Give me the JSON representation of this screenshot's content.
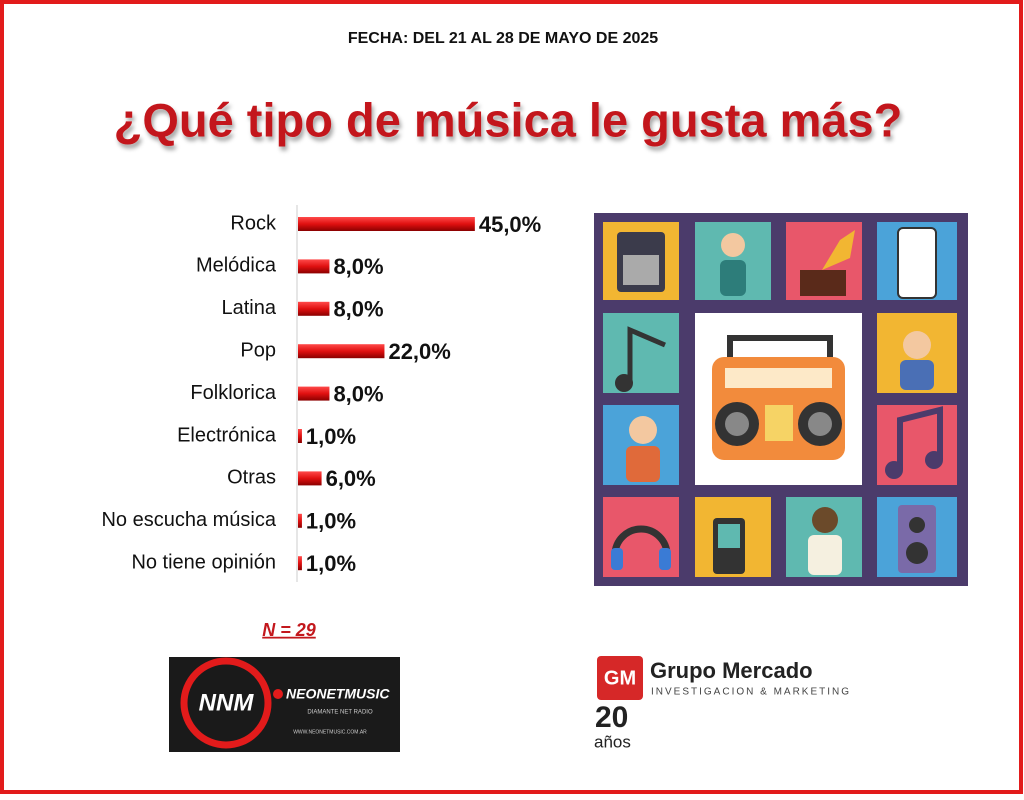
{
  "chart_data": {
    "type": "bar",
    "orientation": "horizontal",
    "subtitle": "FECHA: DEL 21 AL 28 DE MAYO DE 2025",
    "title": "¿Qué tipo de música le gusta más?",
    "categories": [
      "Rock",
      "Melódica",
      "Latina",
      "Pop",
      "Folklorica",
      "Electrónica",
      "Otras",
      "No escucha música",
      "No tiene opinión"
    ],
    "values": [
      45,
      8,
      8,
      22,
      8,
      1,
      6,
      1,
      1
    ],
    "value_labels": [
      "45,0%",
      "8,0%",
      "8,0%",
      "22,0%",
      "8,0%",
      "1,0%",
      "6,0%",
      "1,0%",
      "1,0%"
    ],
    "color": "#e01010",
    "annotation": "N = 29"
  },
  "logos": {
    "neonet": {
      "initials": "NNM",
      "name": "NEONETMUSIC",
      "tagline": "DIAMANTE NET RADIO",
      "url": "WWW.NEONETMUSIC.COM.AR"
    },
    "grupo": {
      "initials": "GM",
      "name": "Grupo Mercado",
      "tagline": "INVESTIGACION & MARKETING",
      "years": "20",
      "years_word": "años"
    }
  }
}
